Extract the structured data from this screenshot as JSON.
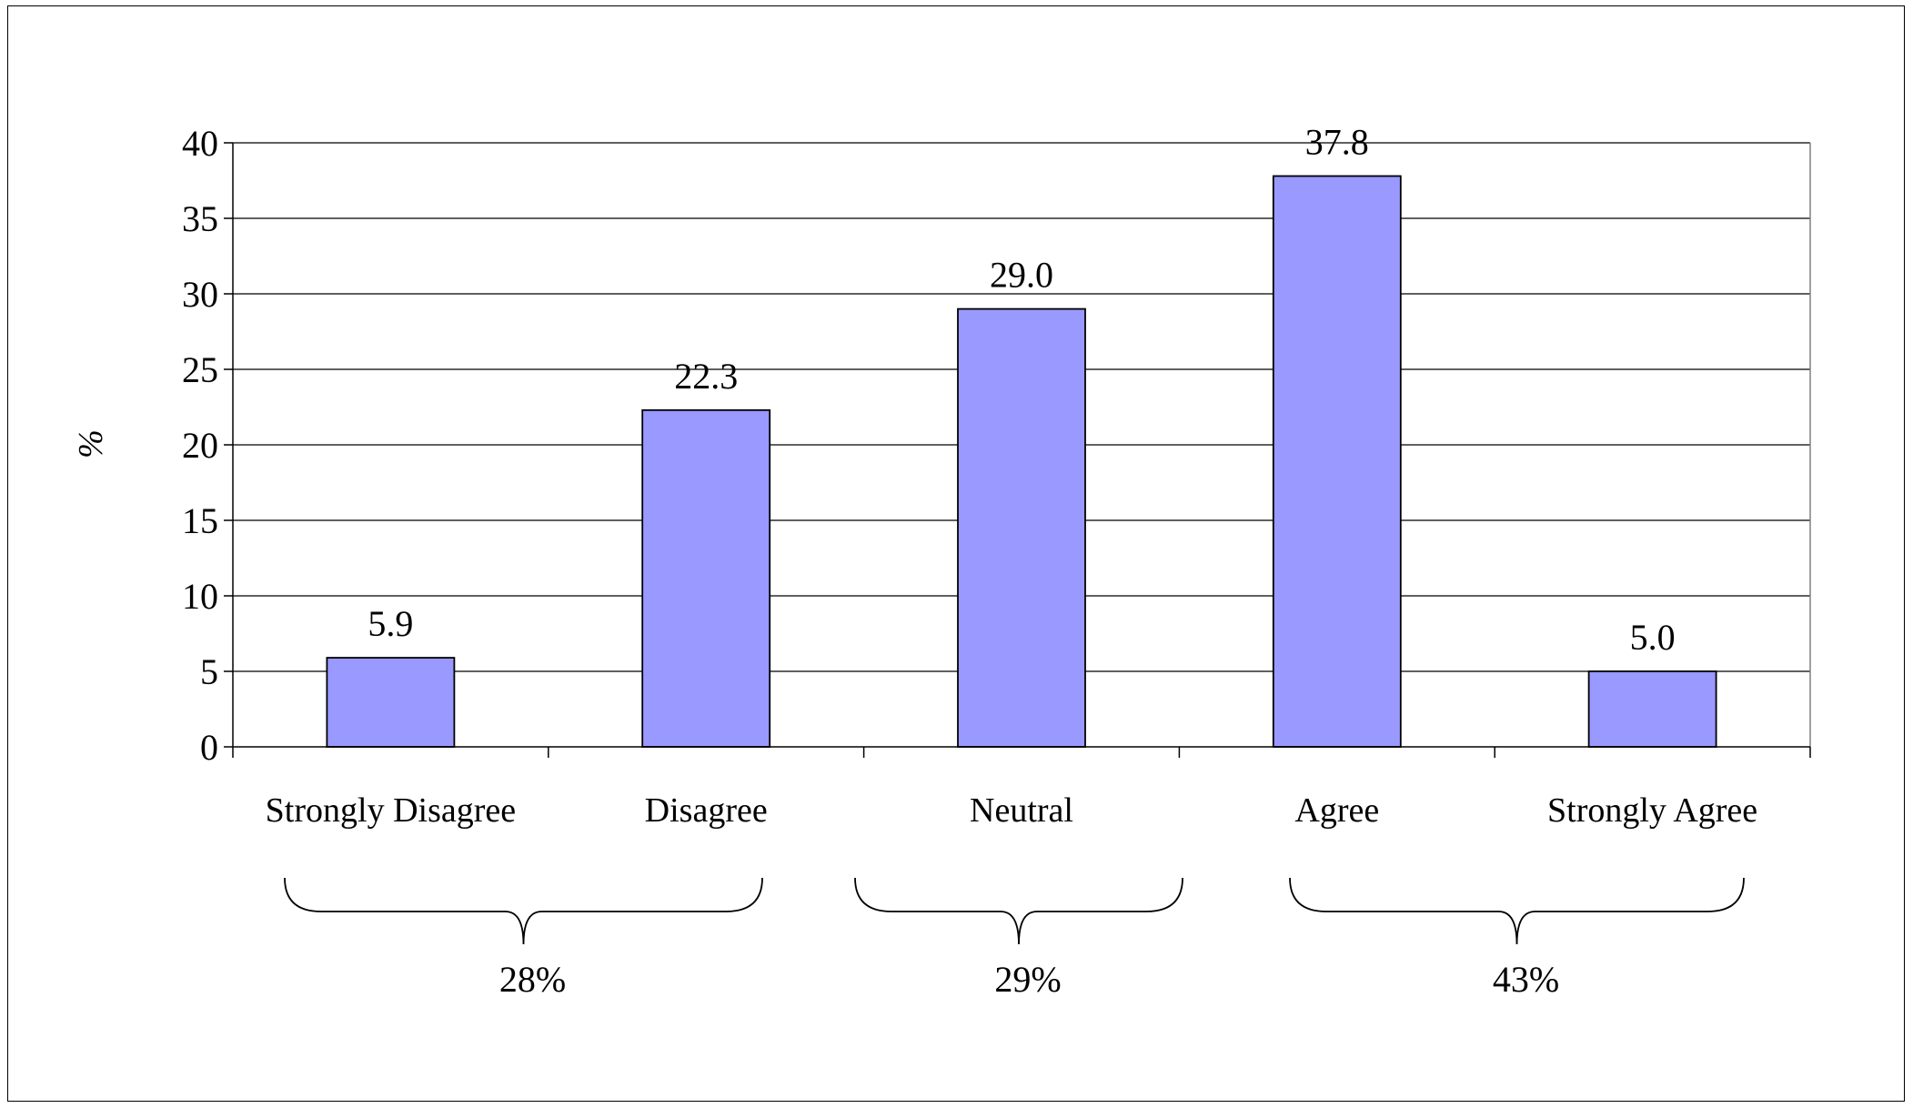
{
  "chart_data": {
    "type": "bar",
    "title": "",
    "xlabel": "",
    "ylabel": "%",
    "ylim": [
      0,
      40
    ],
    "yticks": [
      0,
      5,
      10,
      15,
      20,
      25,
      30,
      35,
      40
    ],
    "grid": true,
    "categories": [
      "Strongly Disagree",
      "Disagree",
      "Neutral",
      "Agree",
      "Strongly Agree"
    ],
    "values": [
      5.9,
      22.3,
      29.0,
      37.8,
      5.0
    ],
    "data_labels": [
      "5.9",
      "22.3",
      "29.0",
      "37.8",
      "5.0"
    ],
    "bar_color": "#9999ff",
    "groups": [
      {
        "label": "28%",
        "categories": [
          "Strongly Disagree",
          "Disagree"
        ]
      },
      {
        "label": "29%",
        "categories": [
          "Neutral"
        ]
      },
      {
        "label": "43%",
        "categories": [
          "Agree",
          "Strongly Agree"
        ]
      }
    ]
  }
}
